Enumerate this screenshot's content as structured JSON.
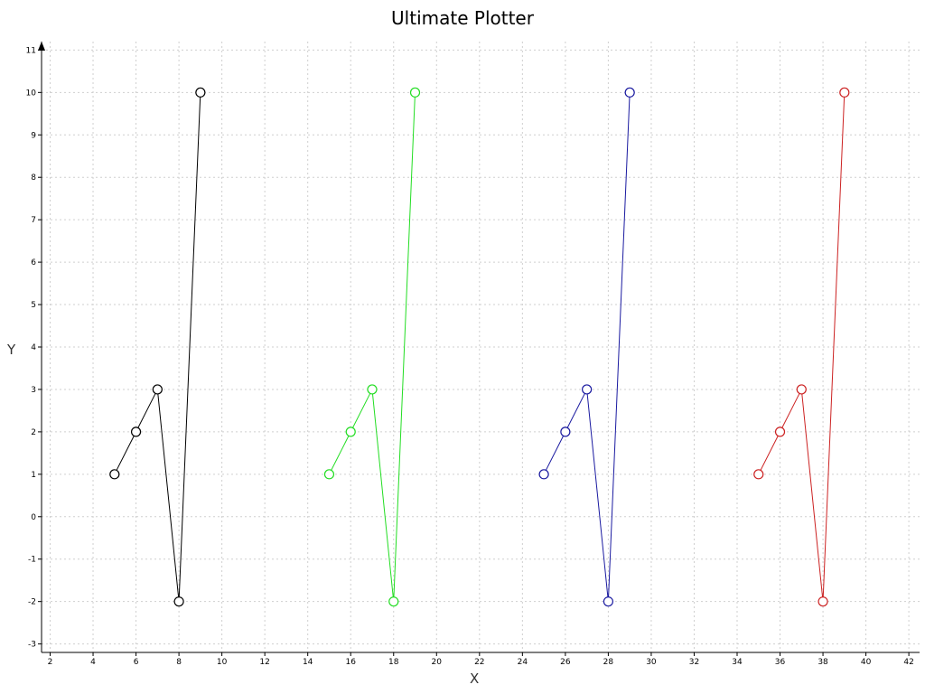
{
  "chart_data": {
    "type": "line",
    "title": "Ultimate Plotter",
    "xlabel": "X",
    "ylabel": "Y",
    "xlim": [
      1.6,
      42.5
    ],
    "ylim": [
      -3.2,
      11.2
    ],
    "x_ticks": [
      2,
      4,
      6,
      8,
      10,
      12,
      14,
      16,
      18,
      20,
      22,
      24,
      26,
      28,
      30,
      32,
      34,
      36,
      38,
      40,
      42
    ],
    "y_ticks": [
      -3,
      -2,
      -1,
      0,
      1,
      2,
      3,
      4,
      5,
      6,
      7,
      8,
      9,
      10,
      11
    ],
    "grid": true,
    "series": [
      {
        "color": "#000000",
        "x": [
          5,
          6,
          7,
          8,
          9
        ],
        "y": [
          1,
          2,
          3,
          -2,
          10
        ]
      },
      {
        "color": "#22dd22",
        "x": [
          15,
          16,
          17,
          18,
          19
        ],
        "y": [
          1,
          2,
          3,
          -2,
          10
        ]
      },
      {
        "color": "#1a1aa0",
        "x": [
          25,
          26,
          27,
          28,
          29
        ],
        "y": [
          1,
          2,
          3,
          -2,
          10
        ]
      },
      {
        "color": "#cc2222",
        "x": [
          35,
          36,
          37,
          38,
          39
        ],
        "y": [
          1,
          2,
          3,
          -2,
          10
        ]
      }
    ]
  }
}
